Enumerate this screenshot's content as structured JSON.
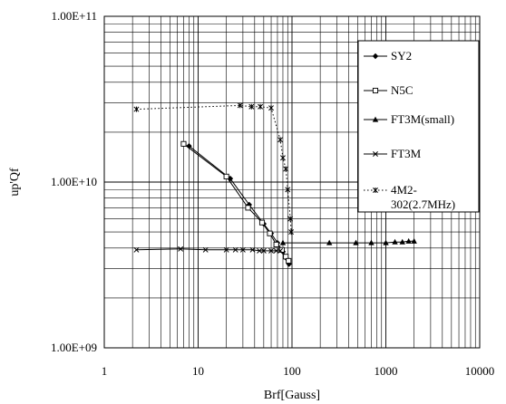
{
  "chart_data": {
    "type": "line",
    "title": "",
    "xlabel": "Brf[Gauss]",
    "ylabel": "up'Qf",
    "x_scale": "log",
    "y_scale": "log",
    "xlim": [
      1,
      10000
    ],
    "ylim": [
      1000000000,
      100000000000
    ],
    "x_ticks": [
      "1",
      "10",
      "100",
      "1000",
      "10000"
    ],
    "y_ticks": [
      "1.00E+09",
      "1.00E+10",
      "1.00E+11"
    ],
    "grid": true,
    "legend_position": "right",
    "series": [
      {
        "name": "SY2",
        "marker": "diamond",
        "line": "solid",
        "x": [
          8,
          22,
          35,
          50,
          60,
          70,
          80,
          88,
          93
        ],
        "y": [
          16500000000,
          10500000000,
          7300000000,
          5600000000,
          4900000000,
          4300000000,
          3800000000,
          3450000000,
          3200000000
        ]
      },
      {
        "name": "N5C",
        "marker": "square-open",
        "line": "solid",
        "x": [
          7,
          20,
          34,
          48,
          58,
          68,
          78,
          86,
          92
        ],
        "y": [
          17000000000,
          10800000000,
          7000000000,
          5700000000,
          4900000000,
          4200000000,
          3900000000,
          3550000000,
          3350000000
        ]
      },
      {
        "name": "FT3M(small)",
        "marker": "triangle",
        "line": "solid",
        "x": [
          80,
          250,
          480,
          700,
          1000,
          1250,
          1500,
          1750,
          2000
        ],
        "y": [
          4300000000,
          4300000000,
          4300000000,
          4300000000,
          4300000000,
          4350000000,
          4350000000,
          4400000000,
          4400000000
        ]
      },
      {
        "name": "FT3M",
        "marker": "x",
        "line": "solid",
        "x": [
          2.2,
          6.5,
          12,
          20,
          25,
          30,
          38,
          45,
          50,
          60,
          68,
          75
        ],
        "y": [
          3900000000,
          3950000000,
          3900000000,
          3900000000,
          3900000000,
          3900000000,
          3900000000,
          3850000000,
          3850000000,
          3850000000,
          3850000000,
          3850000000
        ]
      },
      {
        "name": "4M2-302(2.7MHz)",
        "marker": "star",
        "line": "dotted",
        "x": [
          2.2,
          28,
          37,
          46,
          60,
          75,
          80,
          86,
          90,
          96,
          98
        ],
        "y": [
          27500000000,
          29000000000,
          28500000000,
          28500000000,
          28000000000,
          18000000000,
          14000000000,
          12000000000,
          9000000000,
          6000000000,
          5000000000
        ]
      }
    ]
  }
}
